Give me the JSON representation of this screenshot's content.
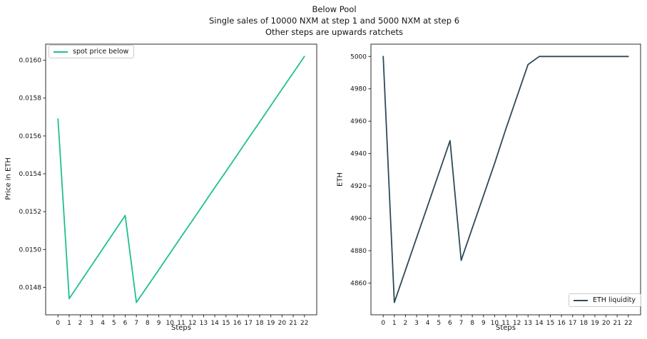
{
  "figure": {
    "title_lines": [
      "Below Pool",
      "Single sales of 10000 NXM at step 1 and 5000 NXM at step 6",
      "Other steps are upwards ratchets"
    ]
  },
  "chart_data": [
    {
      "type": "line",
      "xlabel": "Steps",
      "ylabel": "Price in ETH",
      "legend_position": "upper-left",
      "grid": false,
      "x": [
        0,
        1,
        2,
        3,
        4,
        5,
        6,
        7,
        8,
        9,
        10,
        11,
        12,
        13,
        14,
        15,
        16,
        17,
        18,
        19,
        20,
        21,
        22
      ],
      "series": [
        {
          "name": "spot price below",
          "color": "#1fbf93",
          "values": [
            0.01569,
            0.01474,
            0.014828,
            0.014916,
            0.015004,
            0.015092,
            0.01518,
            0.01472,
            0.014807,
            0.014893,
            0.01498,
            0.015067,
            0.015153,
            0.01524,
            0.015327,
            0.015413,
            0.0155,
            0.015587,
            0.015673,
            0.01576,
            0.015847,
            0.015933,
            0.01602
          ]
        }
      ],
      "xlim": [
        -1.1,
        23.1
      ],
      "ylim": [
        0.014655,
        0.016085
      ],
      "xticks": [
        0,
        1,
        2,
        3,
        4,
        5,
        6,
        7,
        8,
        9,
        10,
        11,
        12,
        13,
        14,
        15,
        16,
        17,
        18,
        19,
        20,
        21,
        22
      ],
      "ytick_values": [
        0.0148,
        0.015,
        0.0152,
        0.0154,
        0.0156,
        0.0158,
        0.016
      ],
      "ytick_labels": [
        "0.0148",
        "0.0150",
        "0.0152",
        "0.0154",
        "0.0156",
        "0.0158",
        "0.0160"
      ]
    },
    {
      "type": "line",
      "xlabel": "Steps",
      "ylabel": "ETH",
      "legend_position": "lower-right",
      "grid": false,
      "x": [
        0,
        1,
        2,
        3,
        4,
        5,
        6,
        7,
        8,
        9,
        10,
        11,
        12,
        13,
        14,
        15,
        16,
        17,
        18,
        19,
        20,
        21,
        22
      ],
      "series": [
        {
          "name": "ETH liquidity",
          "color": "#2d4a5a",
          "values": [
            5000,
            4848,
            4868,
            4888,
            4908,
            4928,
            4948,
            4874,
            4894,
            4914,
            4934,
            4955,
            4975,
            4995,
            5000,
            5000,
            5000,
            5000,
            5000,
            5000,
            5000,
            5000,
            5000
          ]
        }
      ],
      "xlim": [
        -1.1,
        23.1
      ],
      "ylim": [
        4840.4,
        5007.6
      ],
      "xticks": [
        0,
        1,
        2,
        3,
        4,
        5,
        6,
        7,
        8,
        9,
        10,
        11,
        12,
        13,
        14,
        15,
        16,
        17,
        18,
        19,
        20,
        21,
        22
      ],
      "ytick_values": [
        4860,
        4880,
        4900,
        4920,
        4940,
        4960,
        4980,
        5000
      ],
      "ytick_labels": [
        "4860",
        "4880",
        "4900",
        "4920",
        "4940",
        "4960",
        "4980",
        "5000"
      ]
    }
  ]
}
